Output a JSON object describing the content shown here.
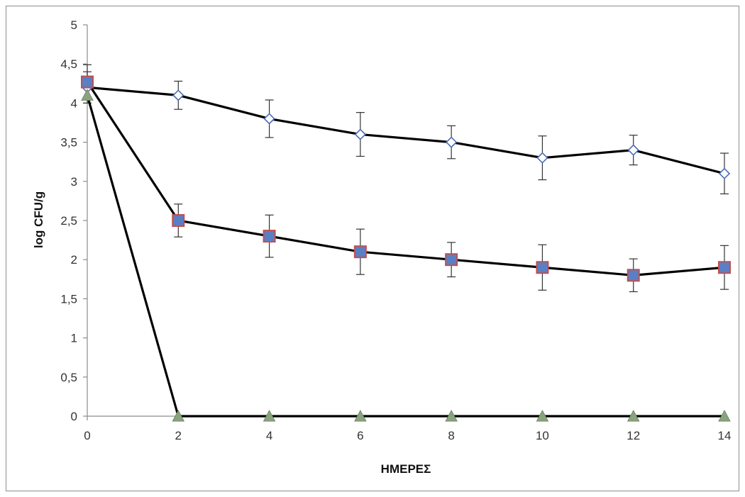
{
  "chart_data": {
    "type": "line",
    "title": "",
    "xlabel": "ΗΜΕΡΕΣ",
    "ylabel": "log CFU/g",
    "x": [
      0,
      2,
      4,
      6,
      8,
      10,
      12,
      14
    ],
    "xlim": [
      0,
      14
    ],
    "ylim": [
      0,
      5
    ],
    "x_ticks": [
      "0",
      "2",
      "4",
      "6",
      "8",
      "10",
      "12",
      "14"
    ],
    "y_ticks": [
      "0",
      "0,5",
      "1",
      "1,5",
      "2",
      "2,5",
      "3",
      "3,5",
      "4",
      "4,5",
      "5"
    ],
    "grid": false,
    "legend": "none",
    "series": [
      {
        "marker": "diamond-open",
        "color": "#000000",
        "marker_color": "#4a6bb5",
        "values": [
          4.2,
          4.1,
          3.8,
          3.6,
          3.5,
          3.3,
          3.4,
          3.1
        ],
        "errors": [
          0.2,
          0.18,
          0.24,
          0.28,
          0.21,
          0.28,
          0.19,
          0.26
        ]
      },
      {
        "marker": "square",
        "color": "#000000",
        "marker_color": "#5b7fc4",
        "marker_edge": "#c0504d",
        "values": [
          4.27,
          2.5,
          2.3,
          2.1,
          2.0,
          1.9,
          1.8,
          1.9
        ],
        "errors": [
          0.22,
          0.21,
          0.27,
          0.29,
          0.22,
          0.29,
          0.21,
          0.28
        ]
      },
      {
        "marker": "triangle",
        "color": "#000000",
        "marker_color": "#8aa47f",
        "values": [
          4.1,
          0,
          0,
          0,
          0,
          0,
          0,
          0
        ]
      }
    ]
  }
}
